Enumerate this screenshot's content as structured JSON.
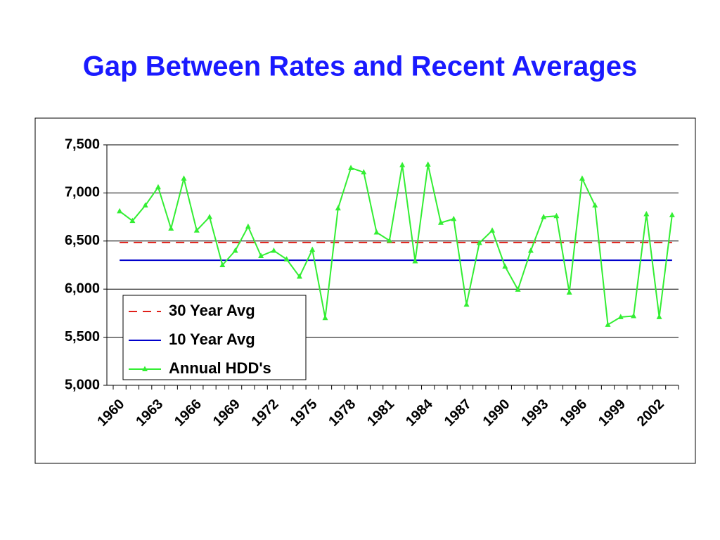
{
  "chart_data": {
    "type": "line",
    "title": "Gap Between Rates and Recent Averages",
    "categories": [
      "1960",
      null,
      null,
      "1963",
      null,
      null,
      "1966",
      null,
      null,
      "1969",
      null,
      null,
      "1972",
      null,
      null,
      "1975",
      null,
      null,
      "1978",
      null,
      null,
      "1981",
      null,
      null,
      "1984",
      null,
      null,
      "1987",
      null,
      null,
      "1990",
      null,
      null,
      "1993",
      null,
      null,
      "1996",
      null,
      null,
      "1999",
      null,
      null,
      "2002",
      null
    ],
    "series": [
      {
        "name": "30 Year Avg",
        "color": "#e0201a",
        "dashed": true,
        "markers": false,
        "values": [
          6485,
          6485,
          6485,
          6485,
          6485,
          6485,
          6485,
          6485,
          6485,
          6485,
          6485,
          6485,
          6485,
          6485,
          6485,
          6485,
          6485,
          6485,
          6485,
          6485,
          6485,
          6485,
          6485,
          6485,
          6485,
          6485,
          6485,
          6485,
          6485,
          6485,
          6485,
          6485,
          6485,
          6485,
          6485,
          6485,
          6485,
          6485,
          6485,
          6485,
          6485,
          6485,
          6485,
          6485
        ]
      },
      {
        "name": "10 Year Avg",
        "color": "#0000cc",
        "dashed": false,
        "markers": false,
        "values": [
          6300,
          6300,
          6300,
          6300,
          6300,
          6300,
          6300,
          6300,
          6300,
          6300,
          6300,
          6300,
          6300,
          6300,
          6300,
          6300,
          6300,
          6300,
          6300,
          6300,
          6300,
          6300,
          6300,
          6300,
          6300,
          6300,
          6300,
          6300,
          6300,
          6300,
          6300,
          6300,
          6300,
          6300,
          6300,
          6300,
          6300,
          6300,
          6300,
          6300,
          6300,
          6300,
          6300,
          6300
        ]
      },
      {
        "name": "Annual HDD's",
        "color": "#33ee33",
        "dashed": false,
        "markers": true,
        "values": [
          6810,
          6710,
          6870,
          7060,
          6630,
          7150,
          6610,
          6750,
          6250,
          6400,
          6650,
          6345,
          6400,
          6310,
          6130,
          6410,
          5700,
          6840,
          7260,
          7215,
          6590,
          6505,
          7290,
          6290,
          7295,
          6690,
          6730,
          5840,
          6480,
          6610,
          6235,
          5995,
          6400,
          6750,
          6760,
          5965,
          7150,
          6870,
          5630,
          5710,
          5720,
          6780,
          5710,
          6770
        ]
      }
    ],
    "ylim": [
      5000,
      7500
    ],
    "yticks": [
      {
        "value": 5000,
        "label": "5,000"
      },
      {
        "value": 5500,
        "label": "5,500"
      },
      {
        "value": 6000,
        "label": "6,000"
      },
      {
        "value": 6500,
        "label": "6,500"
      },
      {
        "value": 7000,
        "label": "7,000"
      },
      {
        "value": 7500,
        "label": "7,500"
      }
    ],
    "grid": true,
    "legend": "bottom-left"
  }
}
